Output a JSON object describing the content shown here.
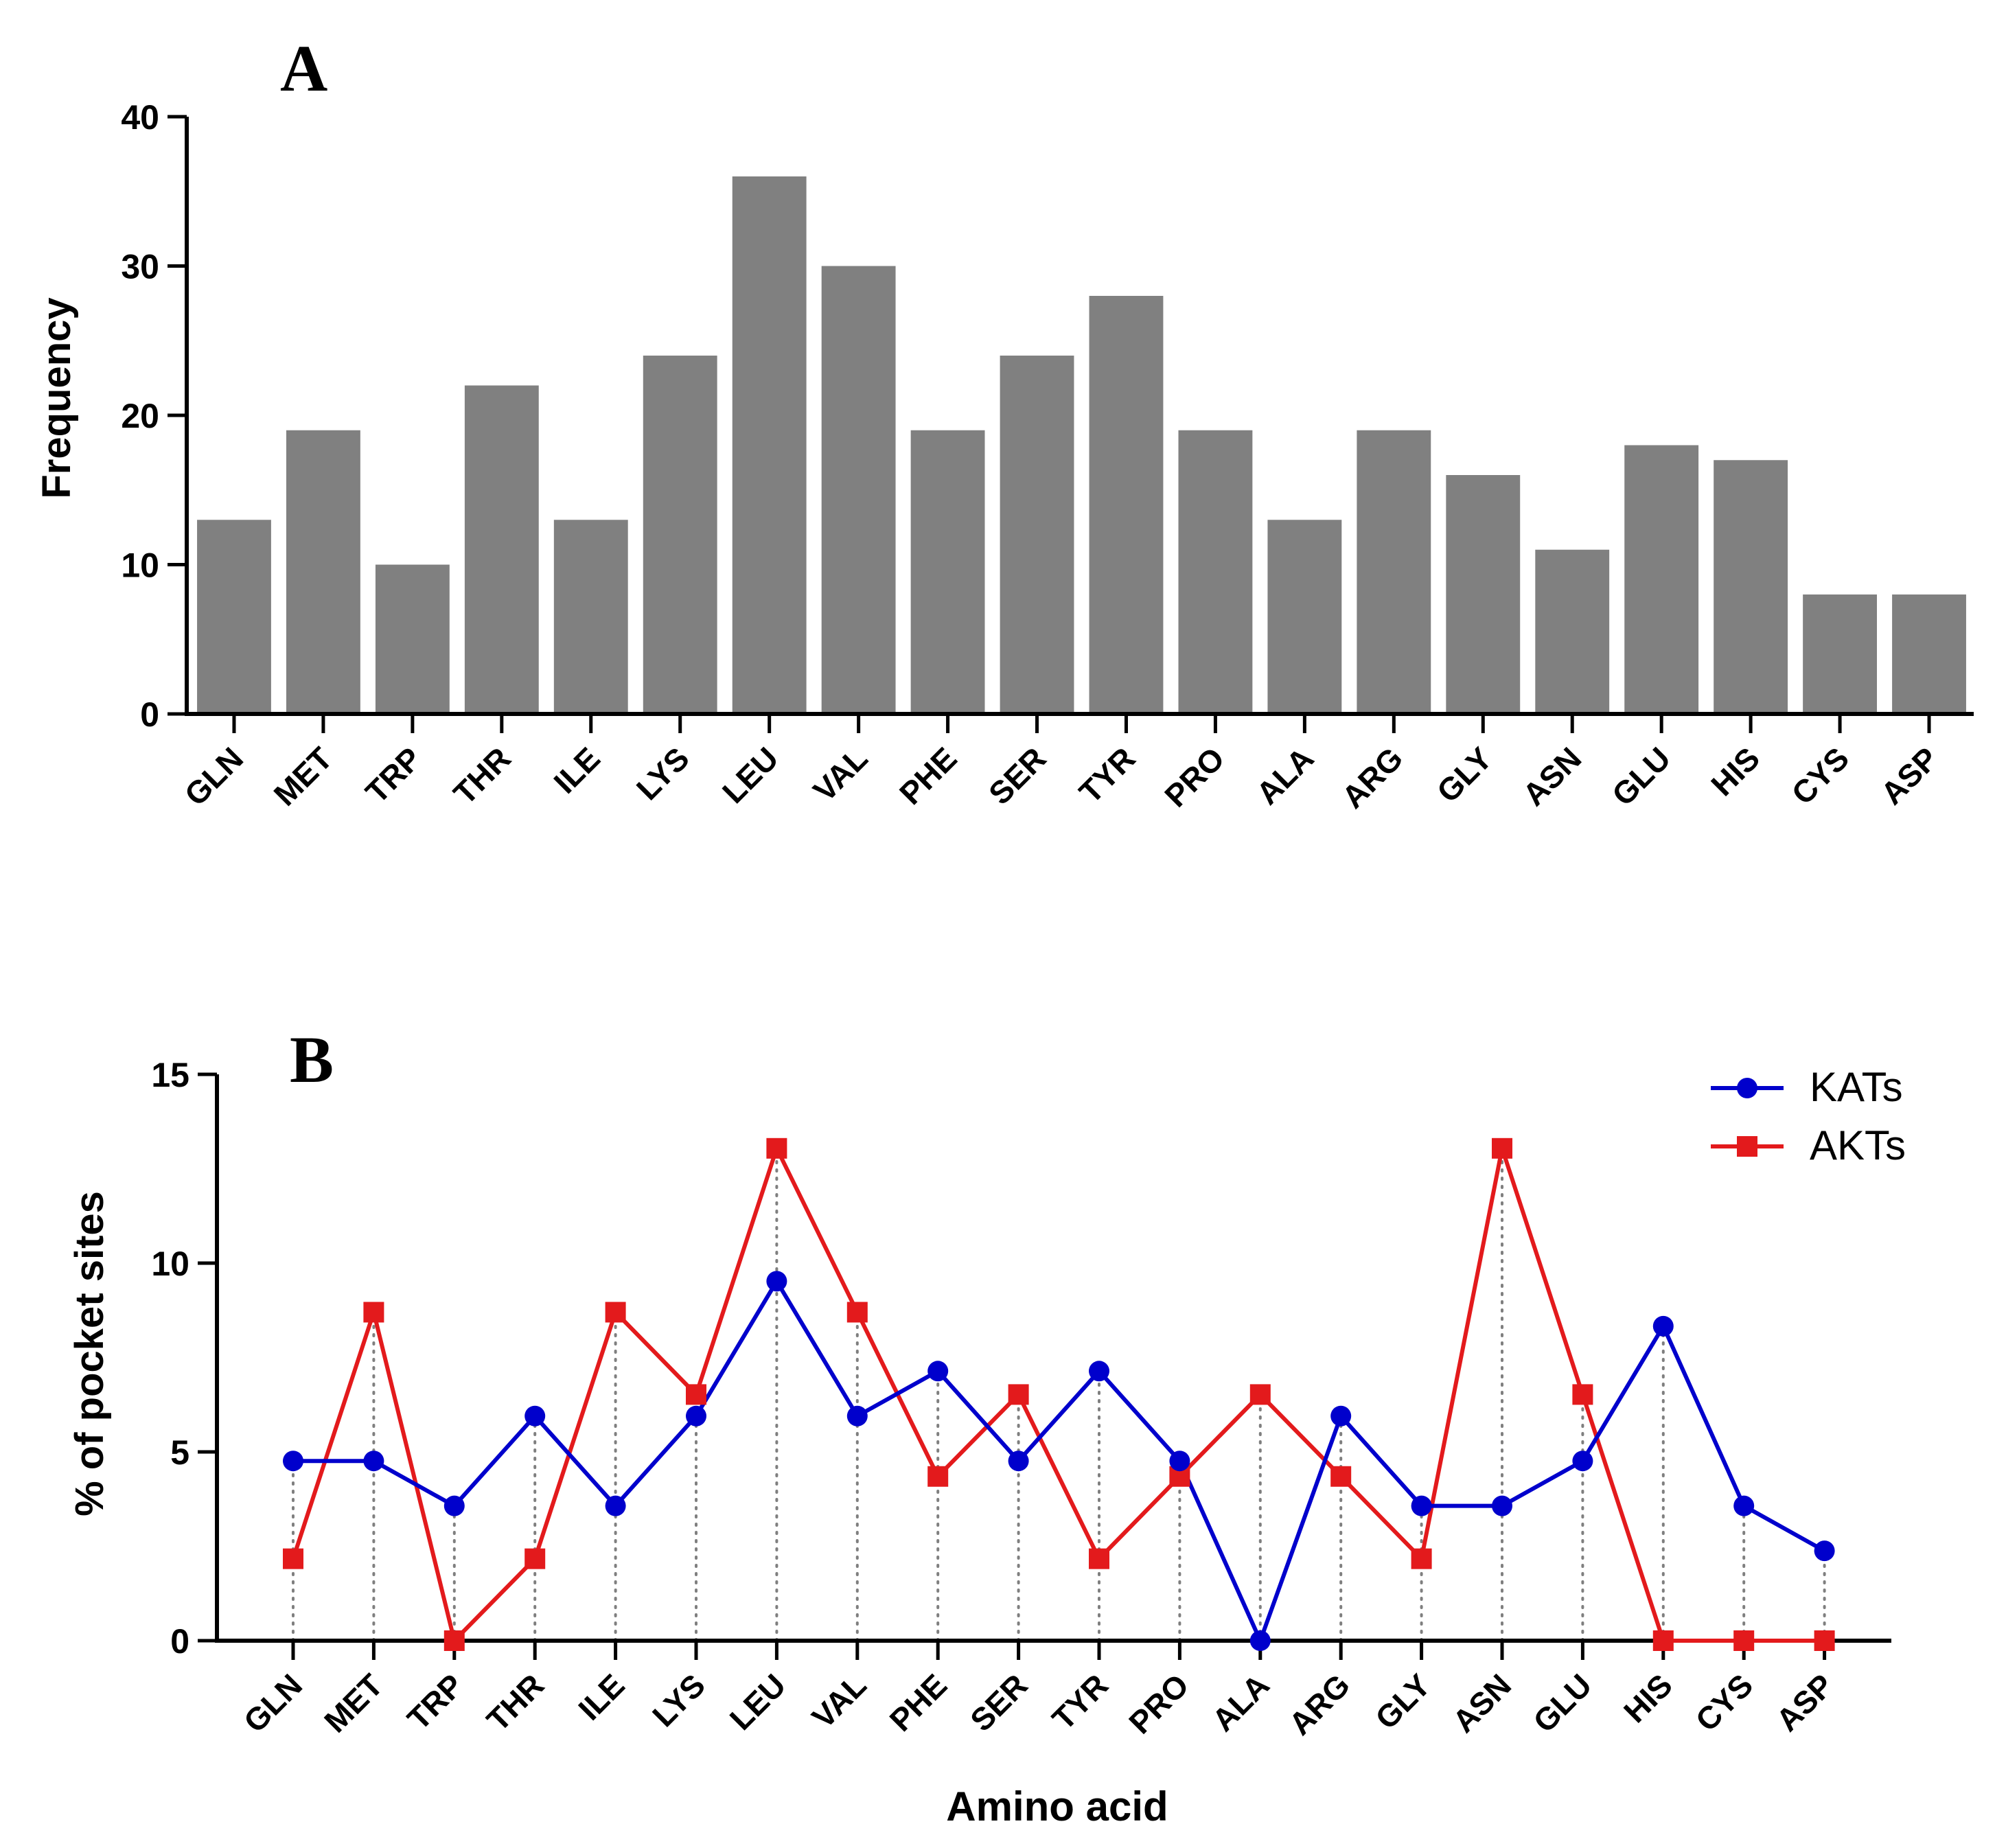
{
  "chart_data": [
    {
      "panel": "A",
      "type": "bar",
      "title": "",
      "xlabel": "",
      "ylabel": "Frequency",
      "ylim": [
        0,
        40
      ],
      "yticks": [
        0,
        10,
        20,
        30,
        40
      ],
      "color": "#808080",
      "categories": [
        "GLN",
        "MET",
        "TRP",
        "THR",
        "ILE",
        "LYS",
        "LEU",
        "VAL",
        "PHE",
        "SER",
        "TYR",
        "PRO",
        "ALA",
        "ARG",
        "GLY",
        "ASN",
        "GLU",
        "HIS",
        "CYS",
        "ASP"
      ],
      "values": [
        13,
        19,
        10,
        22,
        13,
        24,
        36,
        30,
        19,
        24,
        28,
        19,
        13,
        19,
        16,
        11,
        18,
        17,
        8,
        8
      ]
    },
    {
      "panel": "B",
      "type": "line",
      "title": "",
      "xlabel": "Amino acid",
      "ylabel": "% of pocket sites",
      "ylim": [
        0,
        15
      ],
      "yticks": [
        0,
        5,
        10,
        15
      ],
      "legend_position": "top-right",
      "categories": [
        "GLN",
        "MET",
        "TRP",
        "THR",
        "ILE",
        "LYS",
        "LEU",
        "VAL",
        "PHE",
        "SER",
        "TYR",
        "PRO",
        "ALA",
        "ARG",
        "GLY",
        "ASN",
        "GLU",
        "HIS",
        "CYS",
        "ASP"
      ],
      "series": [
        {
          "name": "KATs",
          "color": "#0000CC",
          "marker": "circle",
          "values": [
            4.76,
            4.76,
            3.57,
            5.95,
            3.57,
            5.95,
            9.52,
            5.95,
            7.14,
            4.76,
            7.14,
            4.76,
            0,
            5.95,
            3.57,
            3.57,
            4.76,
            8.33,
            3.57,
            2.38
          ]
        },
        {
          "name": "AKTs",
          "color": "#E31A1C",
          "marker": "square",
          "values": [
            2.17,
            8.7,
            0,
            2.17,
            8.7,
            6.52,
            13.04,
            8.7,
            4.35,
            6.52,
            2.17,
            4.35,
            6.52,
            4.35,
            2.17,
            13.04,
            6.52,
            0,
            0,
            0
          ]
        }
      ]
    }
  ]
}
